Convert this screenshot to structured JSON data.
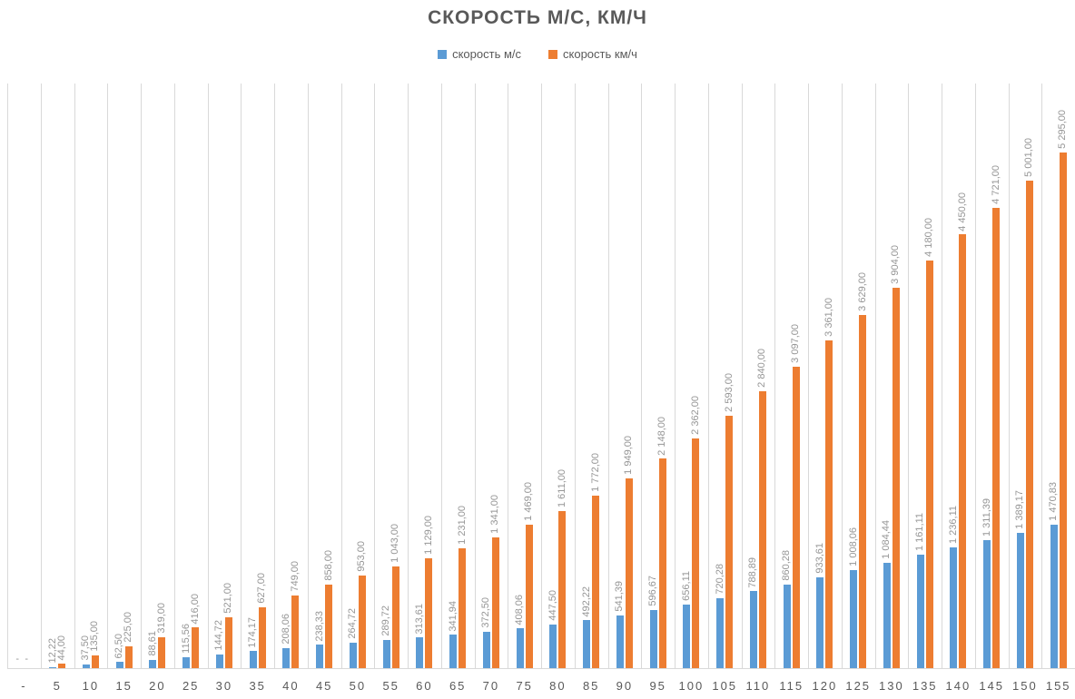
{
  "title": "СКОРОСТЬ М/С, КМ/Ч",
  "legend": [
    {
      "label": "скорость м/с",
      "color": "#5B9BD5"
    },
    {
      "label": "скорость км/ч",
      "color": "#ED7D31"
    }
  ],
  "colors": {
    "series_ms": "#5B9BD5",
    "series_kmh": "#ED7D31",
    "gridline": "#D9D9D9",
    "title_text": "#595959",
    "axis_text": "#595959",
    "data_label_text": "#969696",
    "background": "#FFFFFF"
  },
  "chart_data": {
    "type": "bar",
    "title": "СКОРОСТЬ М/С, КМ/Ч",
    "xlabel": "",
    "ylabel": "",
    "ylim": [
      0,
      6000
    ],
    "gridlines": "vertical",
    "legend_position": "top",
    "data_labels": "rotated-90-above-bars",
    "categories": [
      "-",
      "5",
      "10",
      "15",
      "20",
      "25",
      "30",
      "35",
      "40",
      "45",
      "50",
      "55",
      "60",
      "65",
      "70",
      "75",
      "80",
      "85",
      "90",
      "95",
      "100",
      "105",
      "110",
      "115",
      "120",
      "125",
      "130",
      "135",
      "140",
      "145",
      "150",
      "155"
    ],
    "series": [
      {
        "name": "скорость м/с",
        "color": "#5B9BD5",
        "values": [
          0,
          12.22,
          37.5,
          62.5,
          88.61,
          115.56,
          144.72,
          174.17,
          208.06,
          238.33,
          264.72,
          289.72,
          313.61,
          341.94,
          372.5,
          408.06,
          447.5,
          492.22,
          541.39,
          596.67,
          656.11,
          720.28,
          788.89,
          860.28,
          933.61,
          1008.06,
          1084.44,
          1161.11,
          1236.11,
          1311.39,
          1389.17,
          1470.83
        ],
        "labels": [
          "-",
          "12,22",
          "37,50",
          "62,50",
          "88,61",
          "115,56",
          "144,72",
          "174,17",
          "208,06",
          "238,33",
          "264,72",
          "289,72",
          "313,61",
          "341,94",
          "372,50",
          "408,06",
          "447,50",
          "492,22",
          "541,39",
          "596,67",
          "656,11",
          "720,28",
          "788,89",
          "860,28",
          "933,61",
          "1 008,06",
          "1 084,44",
          "1 161,11",
          "1 236,11",
          "1 311,39",
          "1 389,17",
          "1 470,83"
        ]
      },
      {
        "name": "скорость км/ч",
        "color": "#ED7D31",
        "values": [
          0,
          44,
          135,
          225,
          319,
          416,
          521,
          627,
          749,
          858,
          953,
          1043,
          1129,
          1231,
          1341,
          1469,
          1611,
          1772,
          1949,
          2148,
          2362,
          2593,
          2840,
          3097,
          3361,
          3629,
          3904,
          4180,
          4450,
          4721,
          5001,
          5295
        ],
        "labels": [
          "-",
          "44,00",
          "135,00",
          "225,00",
          "319,00",
          "416,00",
          "521,00",
          "627,00",
          "749,00",
          "858,00",
          "953,00",
          "1 043,00",
          "1 129,00",
          "1 231,00",
          "1 341,00",
          "1 469,00",
          "1 611,00",
          "1 772,00",
          "1 949,00",
          "2 148,00",
          "2 362,00",
          "2 593,00",
          "2 840,00",
          "3 097,00",
          "3 361,00",
          "3 629,00",
          "3 904,00",
          "4 180,00",
          "4 450,00",
          "4 721,00",
          "5 001,00",
          "5 295,00"
        ]
      }
    ]
  }
}
